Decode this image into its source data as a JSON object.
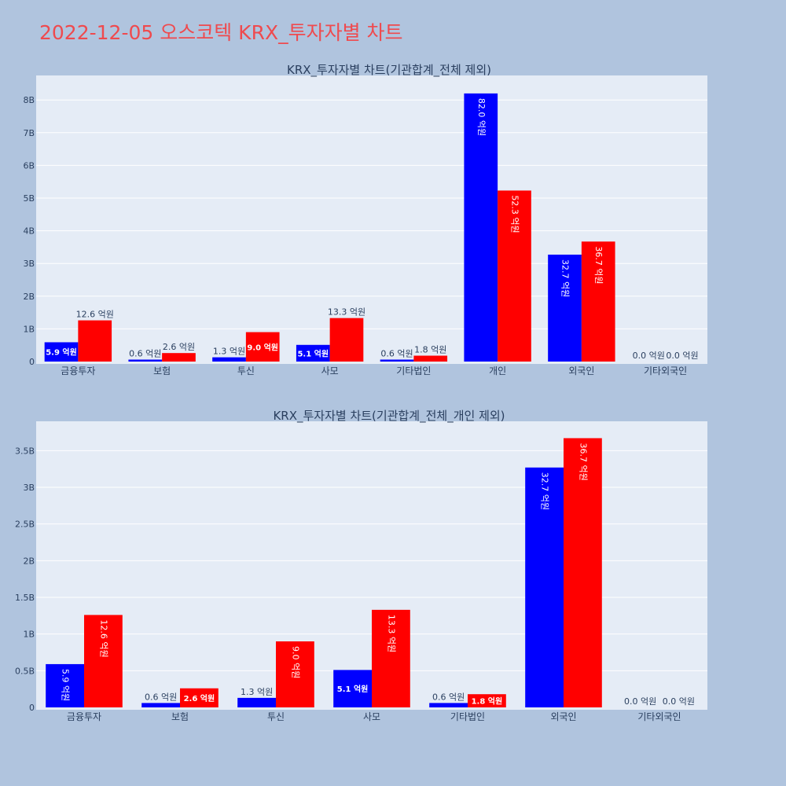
{
  "page": {
    "title": "2022-12-05 오스코텍 KRX_투자자별 차트"
  },
  "colors": {
    "background": "#b0c4de",
    "plot_bg": "#e5ecf6",
    "title": "#ef4a4e",
    "buy": "#0000ff",
    "sell": "#ff0000",
    "text": "#2a3f5f"
  },
  "chart_data": [
    {
      "type": "bar",
      "title": "KRX_투자자별 차트(기관합계_전체 제외)",
      "categories": [
        "금융투자",
        "보험",
        "투신",
        "사모",
        "기타법인",
        "개인",
        "외국인",
        "기타외국인"
      ],
      "series": [
        {
          "color": "#0000ff",
          "values": [
            590000000,
            60000000,
            130000000,
            510000000,
            60000000,
            8200000000,
            3270000000,
            0
          ],
          "labels": [
            "5.9 억원",
            "0.6 억원",
            "1.3 억원",
            "5.1 억원",
            "0.6 억원",
            "82.0 억원",
            "32.7 억원",
            "0.0 억원"
          ]
        },
        {
          "color": "#ff0000",
          "values": [
            1260000000,
            260000000,
            900000000,
            1330000000,
            180000000,
            5230000000,
            3670000000,
            0
          ],
          "labels": [
            "12.6 억원",
            "2.6 억원",
            "9.0 억원",
            "13.3 억원",
            "1.8 억원",
            "52.3 억원",
            "36.7 억원",
            "0.0 억원"
          ]
        }
      ],
      "ylim": [
        0,
        8750000000
      ],
      "yticks": [
        0,
        1000000000,
        2000000000,
        3000000000,
        4000000000,
        5000000000,
        6000000000,
        7000000000,
        8000000000
      ],
      "ytick_labels": [
        "0",
        "1B",
        "2B",
        "3B",
        "4B",
        "5B",
        "6B",
        "7B",
        "8B"
      ],
      "grid": true
    },
    {
      "type": "bar",
      "title": "KRX_투자자별 차트(기관합계_전체_개인 제외)",
      "categories": [
        "금융투자",
        "보험",
        "투신",
        "사모",
        "기타법인",
        "외국인",
        "기타외국인"
      ],
      "series": [
        {
          "color": "#0000ff",
          "values": [
            590000000,
            60000000,
            130000000,
            510000000,
            60000000,
            3270000000,
            0
          ],
          "labels": [
            "5.9 억원",
            "0.6 억원",
            "1.3 억원",
            "5.1 억원",
            "0.6 억원",
            "32.7 억원",
            "0.0 억원"
          ]
        },
        {
          "color": "#ff0000",
          "values": [
            1260000000,
            260000000,
            900000000,
            1330000000,
            180000000,
            3670000000,
            0
          ],
          "labels": [
            "12.6 억원",
            "2.6 억원",
            "9.0 억원",
            "13.3 억원",
            "1.8 억원",
            "36.7 억원",
            "0.0 억원"
          ]
        }
      ],
      "ylim": [
        0,
        3900000000
      ],
      "yticks": [
        0,
        500000000,
        1000000000,
        1500000000,
        2000000000,
        2500000000,
        3000000000,
        3500000000
      ],
      "ytick_labels": [
        "0",
        "0.5B",
        "1B",
        "1.5B",
        "2B",
        "2.5B",
        "3B",
        "3.5B"
      ],
      "grid": true
    }
  ]
}
